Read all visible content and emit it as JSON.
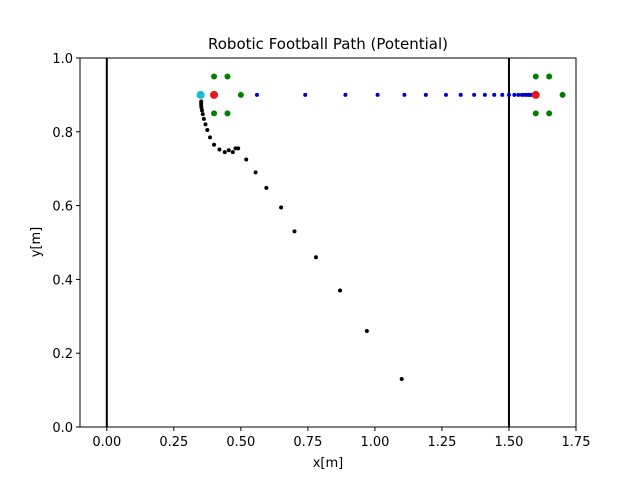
{
  "chart_data": {
    "type": "scatter",
    "title": "Robotic Football Path  (Potential)",
    "xlabel": "x[m]",
    "ylabel": "y[m]",
    "xlim": [
      -0.1,
      1.75
    ],
    "ylim": [
      0.0,
      1.0
    ],
    "grid": false,
    "xticks": [
      "0.00",
      "0.25",
      "0.50",
      "0.75",
      "1.00",
      "1.25",
      "1.50",
      "1.75"
    ],
    "xtick_values": [
      0.0,
      0.25,
      0.5,
      0.75,
      1.0,
      1.25,
      1.5,
      1.75
    ],
    "yticks": [
      "0.0",
      "0.2",
      "0.4",
      "0.6",
      "0.8",
      "1.0"
    ],
    "ytick_values": [
      0.0,
      0.2,
      0.4,
      0.6,
      0.8,
      1.0
    ],
    "vertical_lines": [
      {
        "x": 0.0,
        "color": "#000000"
      },
      {
        "x": 1.5,
        "color": "#000000"
      }
    ],
    "series": [
      {
        "color": "#000000",
        "marker_size": "small",
        "points": [
          [
            1.1,
            0.13
          ],
          [
            0.97,
            0.26
          ],
          [
            0.87,
            0.37
          ],
          [
            0.78,
            0.46
          ],
          [
            0.7,
            0.53
          ],
          [
            0.65,
            0.595
          ],
          [
            0.595,
            0.648
          ],
          [
            0.555,
            0.69
          ],
          [
            0.52,
            0.725
          ],
          [
            0.49,
            0.755
          ],
          [
            0.48,
            0.755
          ],
          [
            0.47,
            0.745
          ],
          [
            0.455,
            0.75
          ],
          [
            0.44,
            0.745
          ],
          [
            0.42,
            0.752
          ],
          [
            0.4,
            0.765
          ],
          [
            0.385,
            0.785
          ],
          [
            0.375,
            0.805
          ],
          [
            0.368,
            0.82
          ],
          [
            0.362,
            0.835
          ],
          [
            0.358,
            0.848
          ],
          [
            0.355,
            0.858
          ],
          [
            0.353,
            0.866
          ],
          [
            0.352,
            0.872
          ],
          [
            0.352,
            0.877
          ],
          [
            0.352,
            0.882
          ]
        ]
      },
      {
        "color": "#0000cc",
        "marker_size": "small",
        "points": [
          [
            0.56,
            0.9
          ],
          [
            0.74,
            0.9
          ],
          [
            0.89,
            0.9
          ],
          [
            1.01,
            0.9
          ],
          [
            1.11,
            0.9
          ],
          [
            1.19,
            0.9
          ],
          [
            1.265,
            0.9
          ],
          [
            1.32,
            0.9
          ],
          [
            1.37,
            0.9
          ],
          [
            1.41,
            0.9
          ],
          [
            1.445,
            0.9
          ],
          [
            1.475,
            0.9
          ],
          [
            1.5,
            0.9
          ],
          [
            1.52,
            0.9
          ],
          [
            1.535,
            0.9
          ],
          [
            1.548,
            0.9
          ],
          [
            1.558,
            0.9
          ],
          [
            1.566,
            0.9
          ],
          [
            1.573,
            0.9
          ],
          [
            1.579,
            0.9
          ],
          [
            1.584,
            0.9
          ]
        ]
      },
      {
        "color": "#008000",
        "marker_size": "medium",
        "points": [
          [
            0.4,
            0.95
          ],
          [
            0.45,
            0.95
          ],
          [
            0.5,
            0.9
          ],
          [
            0.4,
            0.85
          ],
          [
            0.45,
            0.85
          ],
          [
            1.6,
            0.95
          ],
          [
            1.65,
            0.95
          ],
          [
            1.7,
            0.9
          ],
          [
            1.6,
            0.85
          ],
          [
            1.65,
            0.85
          ]
        ]
      },
      {
        "color": "#e31a1c",
        "marker_size": "large",
        "points": [
          [
            0.4,
            0.9
          ],
          [
            1.6,
            0.9
          ]
        ]
      },
      {
        "color": "#17becf",
        "marker_size": "large",
        "points": [
          [
            0.35,
            0.9
          ]
        ]
      }
    ]
  }
}
